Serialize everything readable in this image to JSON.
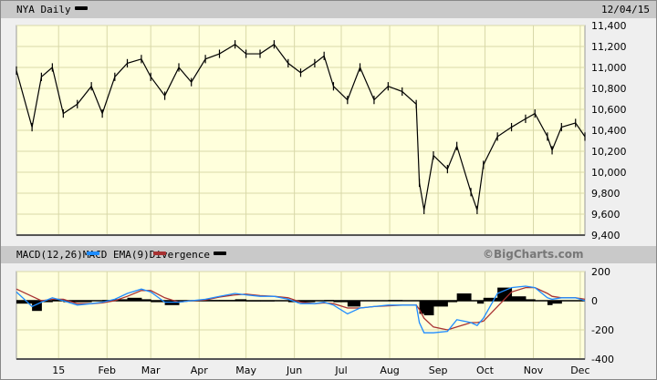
{
  "header": {
    "title": "NYA Daily",
    "date": "12/04/15",
    "swatch_color": "#000000"
  },
  "macd_header": {
    "macd_label": "MACD(12,26)",
    "macd_color": "#1e8cff",
    "ema_label": "MACD EMA(9)",
    "ema_color": "#a83232",
    "div_label": "Divergence",
    "div_color": "#000000",
    "brand": "©BigCharts.com"
  },
  "chart_data": [
    {
      "type": "line",
      "title": "NYA Daily",
      "xlim": [
        "2014-12-05",
        "2015-12-04"
      ],
      "ylim": [
        9400,
        11400
      ],
      "y_ticks": [
        "11,400",
        "11,200",
        "11,000",
        "10,800",
        "10,600",
        "10,400",
        "10,200",
        "10,000",
        "9,800",
        "9,600",
        "9,400"
      ],
      "y_tick_values": [
        11400,
        11200,
        11000,
        10800,
        10600,
        10400,
        10200,
        10000,
        9800,
        9600,
        9400
      ],
      "grid": true,
      "background": "#ffffdc",
      "series": [
        {
          "x": [
            "2014-12-05",
            "2014-12-15",
            "2014-12-21",
            "2014-12-28",
            "2015-01-04",
            "2015-01-13",
            "2015-01-22",
            "2015-01-29",
            "2015-02-06",
            "2015-02-14",
            "2015-02-23",
            "2015-03-01",
            "2015-03-10",
            "2015-03-19",
            "2015-03-27",
            "2015-04-05",
            "2015-04-14",
            "2015-04-24",
            "2015-05-01",
            "2015-05-10",
            "2015-05-19",
            "2015-05-28",
            "2015-06-05",
            "2015-06-14",
            "2015-06-20",
            "2015-06-26",
            "2015-07-05",
            "2015-07-13",
            "2015-07-22",
            "2015-07-31",
            "2015-08-09",
            "2015-08-18",
            "2015-08-20",
            "2015-08-23",
            "2015-08-29",
            "2015-09-07",
            "2015-09-13",
            "2015-09-22",
            "2015-09-26",
            "2015-09-30",
            "2015-10-09",
            "2015-10-18",
            "2015-10-27",
            "2015-11-02",
            "2015-11-10",
            "2015-11-13",
            "2015-11-19",
            "2015-11-28",
            "2015-12-04"
          ],
          "y": [
            10970,
            10430,
            10910,
            11000,
            10560,
            10650,
            10820,
            10560,
            10910,
            11040,
            11080,
            10910,
            10730,
            11000,
            10860,
            11080,
            11130,
            11220,
            11130,
            11130,
            11220,
            11040,
            10950,
            11040,
            11110,
            10820,
            10690,
            11000,
            10690,
            10820,
            10770,
            10650,
            9900,
            9640,
            10160,
            10030,
            10250,
            9810,
            9640,
            10070,
            10340,
            10430,
            10510,
            10560,
            10340,
            10210,
            10430,
            10470,
            10340
          ]
        }
      ]
    },
    {
      "type": "line",
      "title": "MACD(12,26)",
      "ylim": [
        -400,
        200
      ],
      "y_ticks": [
        "200",
        "0",
        "-200",
        "-400"
      ],
      "y_tick_values": [
        200,
        0,
        -200,
        -400
      ],
      "x_ticks": [
        "15",
        "Feb",
        "Mar",
        "Apr",
        "May",
        "Jun",
        "Jul",
        "Aug",
        "Sep",
        "Oct",
        "Nov",
        "Dec"
      ],
      "x_tick_dates": [
        "2015-01-01",
        "2015-02-01",
        "2015-03-01",
        "2015-04-01",
        "2015-05-01",
        "2015-06-01",
        "2015-07-01",
        "2015-08-01",
        "2015-09-01",
        "2015-10-01",
        "2015-11-01",
        "2015-12-01"
      ],
      "grid": true,
      "series": [
        {
          "name": "MACD(12,26)",
          "y": [
            60,
            -40,
            -10,
            20,
            0,
            -30,
            -20,
            -10,
            10,
            50,
            80,
            60,
            -10,
            -10,
            0,
            10,
            30,
            50,
            40,
            30,
            30,
            10,
            -20,
            -20,
            -10,
            -30,
            -90,
            -50,
            -40,
            -30,
            -30,
            -30,
            -150,
            -220,
            -220,
            -210,
            -130,
            -150,
            -170,
            -120,
            50,
            90,
            100,
            90,
            20,
            10,
            20,
            20,
            0
          ]
        },
        {
          "name": "MACD EMA(9)",
          "y": [
            80,
            30,
            0,
            10,
            10,
            -20,
            -20,
            -15,
            0,
            30,
            70,
            70,
            20,
            -10,
            0,
            5,
            25,
            40,
            45,
            35,
            30,
            20,
            -10,
            -20,
            -15,
            -20,
            -50,
            -50,
            -40,
            -35,
            -30,
            -30,
            -60,
            -120,
            -180,
            -200,
            -180,
            -150,
            -150,
            -140,
            -40,
            60,
            90,
            90,
            50,
            30,
            20,
            20,
            10
          ]
        },
        {
          "name": "Divergence",
          "y": [
            -20,
            -70,
            -10,
            10,
            -10,
            -10,
            0,
            5,
            10,
            20,
            10,
            -10,
            -30,
            0,
            0,
            5,
            5,
            10,
            -5,
            -5,
            0,
            -10,
            -10,
            0,
            5,
            -10,
            -40,
            0,
            0,
            5,
            0,
            0,
            -90,
            -100,
            -40,
            -10,
            50,
            0,
            -20,
            20,
            90,
            30,
            10,
            0,
            -30,
            -20,
            0,
            0,
            -10
          ]
        }
      ]
    }
  ]
}
